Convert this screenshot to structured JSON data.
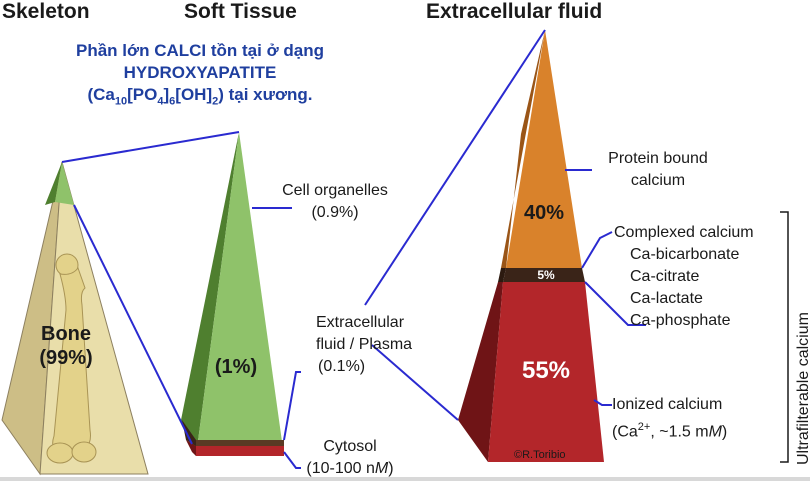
{
  "headers": {
    "skeleton": "Skeleton",
    "soft_tissue": "Soft Tissue",
    "extracellular": "Extracellular fluid"
  },
  "note": {
    "line1": "Phần lớn CALCI tồn tại ở dạng",
    "line2": "HYDROXYAPATITE",
    "formula_pre": "(Ca",
    "sub1": "10",
    "formula_po4": "[PO",
    "sub2": "4",
    "formula_close": "]",
    "sub3": "6",
    "formula_oh": "[OH]",
    "sub4": "2",
    "formula_post": ") tại xương."
  },
  "bone": {
    "name": "Bone",
    "pct": "(99%)"
  },
  "soft_tissue": {
    "pct": "(1%)",
    "cell_organelles": "Cell organelles",
    "cell_organelles_pct": "(0.9%)",
    "ecf_line1": "Extracellular",
    "ecf_line2": "fluid / Plasma",
    "ecf_pct": "(0.1%)",
    "cytosol": "Cytosol",
    "cytosol_range_pre": "(10-100 n",
    "cytosol_unit_m": "M",
    "cytosol_range_post": ")"
  },
  "ecf": {
    "pct_protein": "40%",
    "pct_complexed": "5%",
    "pct_ionized": "55%",
    "protein_bound_1": "Protein bound",
    "protein_bound_2": "calcium",
    "complexed_title": "Complexed calcium",
    "complexed_items": [
      "Ca-bicarbonate",
      "Ca-citrate",
      "Ca-lactate",
      "Ca-phosphate"
    ],
    "ionized_title": "Ionized calcium",
    "ionized_pre": "(Ca",
    "ionized_sup": "2+",
    "ionized_mid": ", ~1.5 m",
    "ionized_m": "M",
    "ionized_post": ")",
    "ultrafilterable": "Ultrafilterable calcium",
    "credit": "©R.Toribio"
  },
  "colors": {
    "bone_face": "#e9deaa",
    "bone_side": "#cdbe86",
    "green": "#8fc26a",
    "green_dark": "#4f7f2f",
    "orange": "#d9822b",
    "orange_dark": "#9a5517",
    "red": "#b3262a",
    "red_dark": "#6f1416",
    "connector": "#2a2ad0",
    "note_blue": "#1f3f9f"
  }
}
